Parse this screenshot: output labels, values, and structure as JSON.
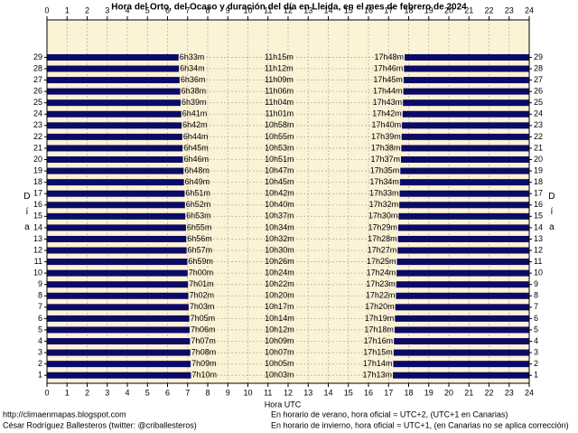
{
  "chart_data": {
    "type": "daylight",
    "title": "Hora del Orto, del Ocaso y duración del día en Lleida, en el mes de febrero de 2024",
    "x_label": "Hora UTC",
    "y_label": "Día",
    "categories": [
      1,
      2,
      3,
      4,
      5,
      6,
      7,
      8,
      9,
      10,
      11,
      12,
      13,
      14,
      15,
      16,
      17,
      18,
      19,
      20,
      21,
      22,
      23,
      24,
      25,
      26,
      27,
      28,
      29
    ],
    "xlim": [
      0,
      24
    ],
    "xticks": [
      0,
      1,
      2,
      3,
      4,
      5,
      6,
      7,
      8,
      9,
      10,
      11,
      12,
      13,
      14,
      15,
      16,
      17,
      18,
      19,
      20,
      21,
      22,
      23,
      24
    ],
    "ylim": [
      0.3,
      32.3
    ],
    "grid": true,
    "color": "#0b0b66",
    "background": "#fcf2d6",
    "sunrise": {
      "values": [
        7.1667,
        7.15,
        7.1333,
        7.1167,
        7.1,
        7.0833,
        7.05,
        7.0333,
        7.0167,
        7,
        6.9833,
        6.95,
        6.9333,
        6.9167,
        6.8833,
        6.8667,
        6.85,
        6.8167,
        6.8,
        6.7667,
        6.75,
        6.7333,
        6.7,
        6.6833,
        6.65,
        6.6333,
        6.6,
        6.5667,
        6.55
      ],
      "value_labels": [
        "7h10m",
        "7h09m",
        "7h08m",
        "7h07m",
        "7h06m",
        "7h05m",
        "7h03m",
        "7h02m",
        "7h01m",
        "7h00m",
        "6h59m",
        "6h57m",
        "6h56m",
        "6h55m",
        "6h53m",
        "6h52m",
        "6h51m",
        "6h49m",
        "6h48m",
        "6h46m",
        "6h45m",
        "6h44m",
        "6h42m",
        "6h41m",
        "6h39m",
        "6h38m",
        "6h36m",
        "6h34m",
        "6h33m"
      ]
    },
    "day_length": {
      "values": [
        10.05,
        10.0833,
        10.1167,
        10.15,
        10.2,
        10.2333,
        10.2833,
        10.3333,
        10.3667,
        10.4,
        10.4333,
        10.5,
        10.5333,
        10.5667,
        10.6167,
        10.6667,
        10.7,
        10.75,
        10.7833,
        10.85,
        10.8833,
        10.9167,
        10.9667,
        11.0167,
        11.0667,
        11.1,
        11.15,
        11.2,
        11.25
      ],
      "value_labels": [
        "10h03m",
        "10h05m",
        "10h07m",
        "10h09m",
        "10h12m",
        "10h14m",
        "10h17m",
        "10h20m",
        "10h22m",
        "10h24m",
        "10h26m",
        "10h30m",
        "10h32m",
        "10h34m",
        "10h37m",
        "10h40m",
        "10h42m",
        "10h45m",
        "10h47m",
        "10h51m",
        "10h53m",
        "10h55m",
        "10h58m",
        "11h01m",
        "11h04m",
        "11h06m",
        "11h09m",
        "11h12m",
        "11h15m"
      ]
    },
    "sunset": {
      "values": [
        17.2167,
        17.2333,
        17.25,
        17.2667,
        17.3,
        17.3167,
        17.3333,
        17.3667,
        17.3833,
        17.4,
        17.4167,
        17.45,
        17.4667,
        17.4833,
        17.5,
        17.5333,
        17.55,
        17.5667,
        17.5833,
        17.6167,
        17.6333,
        17.65,
        17.6667,
        17.7,
        17.7167,
        17.7333,
        17.75,
        17.7667,
        17.8
      ],
      "value_labels": [
        "17h13m",
        "17h14m",
        "17h15m",
        "17h16m",
        "17h18m",
        "17h19m",
        "17h20m",
        "17h22m",
        "17h23m",
        "17h24m",
        "17h25m",
        "17h27m",
        "17h28m",
        "17h29m",
        "17h30m",
        "17h32m",
        "17h33m",
        "17h34m",
        "17h35m",
        "17h37m",
        "17h38m",
        "17h39m",
        "17h40m",
        "17h42m",
        "17h43m",
        "17h44m",
        "17h45m",
        "17h46m",
        "17h48m"
      ]
    },
    "credits": [
      "http://climaenmapas.blogspot.com",
      "César Rodríguez Ballesteros (twitter: @criballesteros)"
    ],
    "notes": [
      "En horario de verano, hora oficial = UTC+2, (UTC+1 en Canarias)",
      "En horario de invierno, hora oficial = UTC+1, (en Canarias no se aplica corrección)"
    ]
  }
}
